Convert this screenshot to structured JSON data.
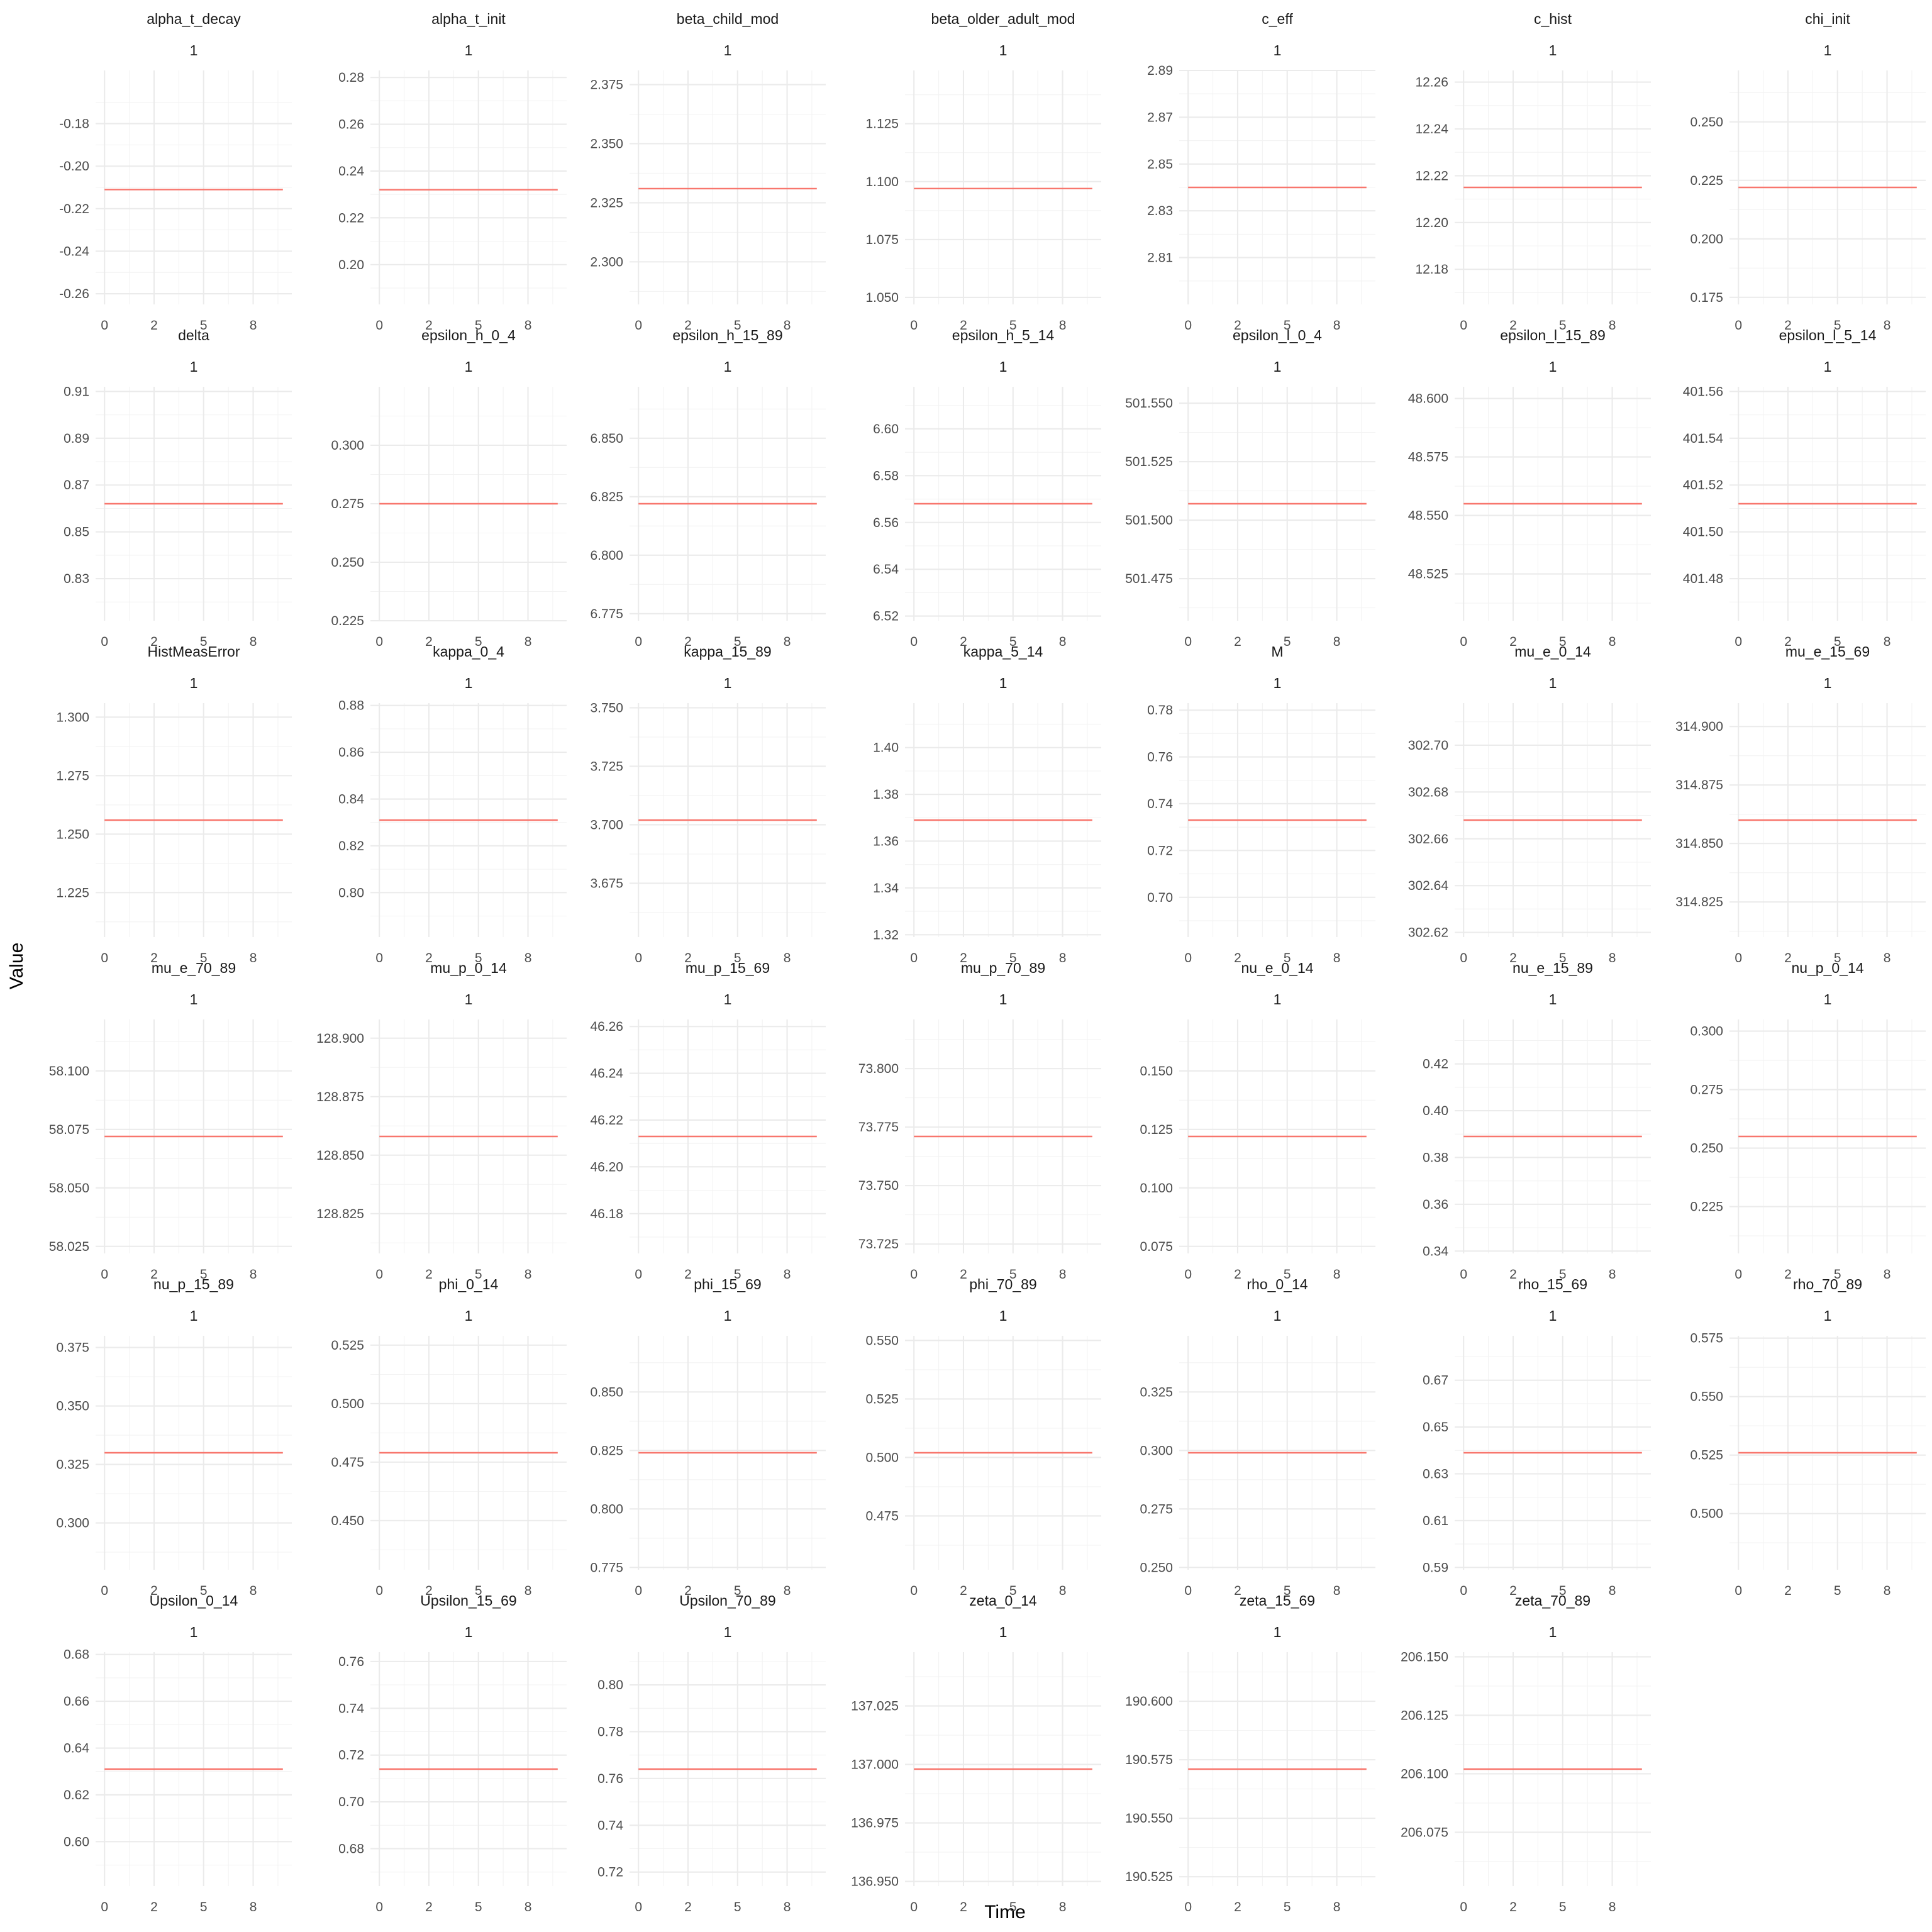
{
  "chart_data": {
    "type": "line",
    "layout": "facet-grid",
    "xlabel": "Time",
    "ylabel": "Value",
    "strip_label": "1",
    "x_tick_labels": [
      "0",
      "2",
      "5",
      "8"
    ],
    "x": [
      0,
      1,
      2,
      3,
      4,
      5,
      6,
      7,
      8,
      9
    ],
    "series_color": "#f8766d",
    "grid": true,
    "facets": [
      {
        "name": "alpha_t_decay",
        "value": -0.211,
        "ylim": [
          -0.265,
          -0.155
        ],
        "yticks": [
          -0.26,
          -0.24,
          -0.22,
          -0.2,
          -0.18
        ],
        "ytick_labels": [
          "-0.26",
          "-0.24",
          "-0.22",
          "-0.20",
          "-0.18"
        ]
      },
      {
        "name": "alpha_t_init",
        "value": 0.232,
        "ylim": [
          0.183,
          0.283
        ],
        "yticks": [
          0.2,
          0.22,
          0.24,
          0.26,
          0.28
        ],
        "ytick_labels": [
          "0.20",
          "0.22",
          "0.24",
          "0.26",
          "0.28"
        ]
      },
      {
        "name": "beta_child_mod",
        "value": 2.331,
        "ylim": [
          2.282,
          2.381
        ],
        "yticks": [
          2.3,
          2.325,
          2.35,
          2.375
        ],
        "ytick_labels": [
          "2.300",
          "2.325",
          "2.350",
          "2.375"
        ]
      },
      {
        "name": "beta_older_adult_mod",
        "value": 1.097,
        "ylim": [
          1.047,
          1.148
        ],
        "yticks": [
          1.05,
          1.075,
          1.1,
          1.125
        ],
        "ytick_labels": [
          "1.050",
          "1.075",
          "1.100",
          "1.125"
        ]
      },
      {
        "name": "c_eff",
        "value": 2.84,
        "ylim": [
          2.79,
          2.89
        ],
        "yticks": [
          2.81,
          2.83,
          2.85,
          2.87,
          2.89
        ],
        "ytick_labels": [
          "2.81",
          "2.83",
          "2.85",
          "2.87",
          "2.89"
        ]
      },
      {
        "name": "c_hist",
        "value": 12.215,
        "ylim": [
          12.165,
          12.265
        ],
        "yticks": [
          12.18,
          12.2,
          12.22,
          12.24,
          12.26
        ],
        "ytick_labels": [
          "12.18",
          "12.20",
          "12.22",
          "12.24",
          "12.26"
        ]
      },
      {
        "name": "chi_init",
        "value": 0.222,
        "ylim": [
          0.172,
          0.272
        ],
        "yticks": [
          0.175,
          0.2,
          0.225,
          0.25
        ],
        "ytick_labels": [
          "0.175",
          "0.200",
          "0.225",
          "0.250"
        ]
      },
      {
        "name": "delta",
        "value": 0.862,
        "ylim": [
          0.812,
          0.912
        ],
        "yticks": [
          0.83,
          0.85,
          0.87,
          0.89,
          0.91
        ],
        "ytick_labels": [
          "0.83",
          "0.85",
          "0.87",
          "0.89",
          "0.91"
        ]
      },
      {
        "name": "epsilon_h_0_4",
        "value": 0.275,
        "ylim": [
          0.225,
          0.325
        ],
        "yticks": [
          0.225,
          0.25,
          0.275,
          0.3
        ],
        "ytick_labels": [
          "0.225",
          "0.250",
          "0.275",
          "0.300"
        ]
      },
      {
        "name": "epsilon_h_15_89",
        "value": 6.822,
        "ylim": [
          6.772,
          6.872
        ],
        "yticks": [
          6.775,
          6.8,
          6.825,
          6.85
        ],
        "ytick_labels": [
          "6.775",
          "6.800",
          "6.825",
          "6.850"
        ]
      },
      {
        "name": "epsilon_h_5_14",
        "value": 6.568,
        "ylim": [
          6.518,
          6.618
        ],
        "yticks": [
          6.52,
          6.54,
          6.56,
          6.58,
          6.6
        ],
        "ytick_labels": [
          "6.52",
          "6.54",
          "6.56",
          "6.58",
          "6.60"
        ]
      },
      {
        "name": "epsilon_l_0_4",
        "value": 501.507,
        "ylim": [
          501.457,
          501.557
        ],
        "yticks": [
          501.475,
          501.5,
          501.525,
          501.55
        ],
        "ytick_labels": [
          "501.475",
          "501.500",
          "501.525",
          "501.550"
        ]
      },
      {
        "name": "epsilon_l_15_89",
        "value": 48.555,
        "ylim": [
          48.505,
          48.605
        ],
        "yticks": [
          48.525,
          48.55,
          48.575,
          48.6
        ],
        "ytick_labels": [
          "48.525",
          "48.550",
          "48.575",
          "48.600"
        ]
      },
      {
        "name": "epsilon_l_5_14",
        "value": 401.512,
        "ylim": [
          401.462,
          401.562
        ],
        "yticks": [
          401.48,
          401.5,
          401.52,
          401.54,
          401.56
        ],
        "ytick_labels": [
          "401.48",
          "401.50",
          "401.52",
          "401.54",
          "401.56"
        ]
      },
      {
        "name": "HistMeasError",
        "value": 1.256,
        "ylim": [
          1.206,
          1.306
        ],
        "yticks": [
          1.225,
          1.25,
          1.275,
          1.3
        ],
        "ytick_labels": [
          "1.225",
          "1.250",
          "1.275",
          "1.300"
        ]
      },
      {
        "name": "kappa_0_4",
        "value": 0.831,
        "ylim": [
          0.781,
          0.881
        ],
        "yticks": [
          0.8,
          0.82,
          0.84,
          0.86,
          0.88
        ],
        "ytick_labels": [
          "0.80",
          "0.82",
          "0.84",
          "0.86",
          "0.88"
        ]
      },
      {
        "name": "kappa_15_89",
        "value": 3.702,
        "ylim": [
          3.652,
          3.752
        ],
        "yticks": [
          3.675,
          3.7,
          3.725,
          3.75
        ],
        "ytick_labels": [
          "3.675",
          "3.700",
          "3.725",
          "3.750"
        ]
      },
      {
        "name": "kappa_5_14",
        "value": 1.369,
        "ylim": [
          1.319,
          1.419
        ],
        "yticks": [
          1.32,
          1.34,
          1.36,
          1.38,
          1.4
        ],
        "ytick_labels": [
          "1.32",
          "1.34",
          "1.36",
          "1.38",
          "1.40"
        ]
      },
      {
        "name": "M",
        "value": 0.733,
        "ylim": [
          0.683,
          0.783
        ],
        "yticks": [
          0.7,
          0.72,
          0.74,
          0.76,
          0.78
        ],
        "ytick_labels": [
          "0.70",
          "0.72",
          "0.74",
          "0.76",
          "0.78"
        ]
      },
      {
        "name": "mu_e_0_14",
        "value": 302.668,
        "ylim": [
          302.618,
          302.718
        ],
        "yticks": [
          302.62,
          302.64,
          302.66,
          302.68,
          302.7
        ],
        "ytick_labels": [
          "302.62",
          "302.64",
          "302.66",
          "302.68",
          "302.70"
        ]
      },
      {
        "name": "mu_e_15_69",
        "value": 314.86,
        "ylim": [
          314.81,
          314.91
        ],
        "yticks": [
          314.825,
          314.85,
          314.875,
          314.9
        ],
        "ytick_labels": [
          "314.825",
          "314.850",
          "314.875",
          "314.900"
        ]
      },
      {
        "name": "mu_e_70_89",
        "value": 58.072,
        "ylim": [
          58.022,
          58.122
        ],
        "yticks": [
          58.025,
          58.05,
          58.075,
          58.1
        ],
        "ytick_labels": [
          "58.025",
          "58.050",
          "58.075",
          "58.100"
        ]
      },
      {
        "name": "mu_p_0_14",
        "value": 128.858,
        "ylim": [
          128.808,
          128.908
        ],
        "yticks": [
          128.825,
          128.85,
          128.875,
          128.9
        ],
        "ytick_labels": [
          "128.825",
          "128.850",
          "128.875",
          "128.900"
        ]
      },
      {
        "name": "mu_p_15_69",
        "value": 46.213,
        "ylim": [
          46.163,
          46.263
        ],
        "yticks": [
          46.18,
          46.2,
          46.22,
          46.24,
          46.26
        ],
        "ytick_labels": [
          "46.18",
          "46.20",
          "46.22",
          "46.24",
          "46.26"
        ]
      },
      {
        "name": "mu_p_70_89",
        "value": 73.771,
        "ylim": [
          73.721,
          73.821
        ],
        "yticks": [
          73.725,
          73.75,
          73.775,
          73.8
        ],
        "ytick_labels": [
          "73.725",
          "73.750",
          "73.775",
          "73.800"
        ]
      },
      {
        "name": "nu_e_0_14",
        "value": 0.122,
        "ylim": [
          0.072,
          0.172
        ],
        "yticks": [
          0.075,
          0.1,
          0.125,
          0.15
        ],
        "ytick_labels": [
          "0.075",
          "0.100",
          "0.125",
          "0.150"
        ]
      },
      {
        "name": "nu_e_15_89",
        "value": 0.389,
        "ylim": [
          0.339,
          0.439
        ],
        "yticks": [
          0.34,
          0.36,
          0.38,
          0.4,
          0.42
        ],
        "ytick_labels": [
          "0.34",
          "0.36",
          "0.38",
          "0.40",
          "0.42"
        ]
      },
      {
        "name": "nu_p_0_14",
        "value": 0.255,
        "ylim": [
          0.205,
          0.305
        ],
        "yticks": [
          0.225,
          0.25,
          0.275,
          0.3
        ],
        "ytick_labels": [
          "0.225",
          "0.250",
          "0.275",
          "0.300"
        ]
      },
      {
        "name": "nu_p_15_89",
        "value": 0.33,
        "ylim": [
          0.28,
          0.38
        ],
        "yticks": [
          0.3,
          0.325,
          0.35,
          0.375
        ],
        "ytick_labels": [
          "0.300",
          "0.325",
          "0.350",
          "0.375"
        ]
      },
      {
        "name": "phi_0_14",
        "value": 0.479,
        "ylim": [
          0.429,
          0.529
        ],
        "yticks": [
          0.45,
          0.475,
          0.5,
          0.525
        ],
        "ytick_labels": [
          "0.450",
          "0.475",
          "0.500",
          "0.525"
        ]
      },
      {
        "name": "phi_15_69",
        "value": 0.824,
        "ylim": [
          0.774,
          0.874
        ],
        "yticks": [
          0.775,
          0.8,
          0.825,
          0.85
        ],
        "ytick_labels": [
          "0.775",
          "0.800",
          "0.825",
          "0.850"
        ]
      },
      {
        "name": "phi_70_89",
        "value": 0.502,
        "ylim": [
          0.452,
          0.552
        ],
        "yticks": [
          0.475,
          0.5,
          0.525,
          0.55
        ],
        "ytick_labels": [
          "0.475",
          "0.500",
          "0.525",
          "0.550"
        ]
      },
      {
        "name": "rho_0_14",
        "value": 0.299,
        "ylim": [
          0.249,
          0.349
        ],
        "yticks": [
          0.25,
          0.275,
          0.3,
          0.325
        ],
        "ytick_labels": [
          "0.250",
          "0.275",
          "0.300",
          "0.325"
        ]
      },
      {
        "name": "rho_15_69",
        "value": 0.639,
        "ylim": [
          0.589,
          0.689
        ],
        "yticks": [
          0.59,
          0.61,
          0.63,
          0.65,
          0.67
        ],
        "ytick_labels": [
          "0.59",
          "0.61",
          "0.63",
          "0.65",
          "0.67"
        ]
      },
      {
        "name": "rho_70_89",
        "value": 0.526,
        "ylim": [
          0.476,
          0.576
        ],
        "yticks": [
          0.5,
          0.525,
          0.55,
          0.575
        ],
        "ytick_labels": [
          "0.500",
          "0.525",
          "0.550",
          "0.575"
        ]
      },
      {
        "name": "Upsilon_0_14",
        "value": 0.631,
        "ylim": [
          0.581,
          0.681
        ],
        "yticks": [
          0.6,
          0.62,
          0.64,
          0.66,
          0.68
        ],
        "ytick_labels": [
          "0.60",
          "0.62",
          "0.64",
          "0.66",
          "0.68"
        ]
      },
      {
        "name": "Upsilon_15_69",
        "value": 0.714,
        "ylim": [
          0.664,
          0.764
        ],
        "yticks": [
          0.68,
          0.7,
          0.72,
          0.74,
          0.76
        ],
        "ytick_labels": [
          "0.68",
          "0.70",
          "0.72",
          "0.74",
          "0.76"
        ]
      },
      {
        "name": "Upsilon_70_89",
        "value": 0.764,
        "ylim": [
          0.714,
          0.814
        ],
        "yticks": [
          0.72,
          0.74,
          0.76,
          0.78,
          0.8
        ],
        "ytick_labels": [
          "0.72",
          "0.74",
          "0.76",
          "0.78",
          "0.80"
        ]
      },
      {
        "name": "zeta_0_14",
        "value": 136.998,
        "ylim": [
          136.948,
          137.048
        ],
        "yticks": [
          136.95,
          136.975,
          137.0,
          137.025
        ],
        "ytick_labels": [
          "136.950",
          "136.975",
          "137.000",
          "137.025"
        ]
      },
      {
        "name": "zeta_15_69",
        "value": 190.571,
        "ylim": [
          190.521,
          190.621
        ],
        "yticks": [
          190.525,
          190.55,
          190.575,
          190.6
        ],
        "ytick_labels": [
          "190.525",
          "190.550",
          "190.575",
          "190.600"
        ]
      },
      {
        "name": "zeta_70_89",
        "value": 206.102,
        "ylim": [
          206.052,
          206.152
        ],
        "yticks": [
          206.075,
          206.1,
          206.125,
          206.15
        ],
        "ytick_labels": [
          "206.075",
          "206.100",
          "206.125",
          "206.150"
        ]
      }
    ]
  }
}
